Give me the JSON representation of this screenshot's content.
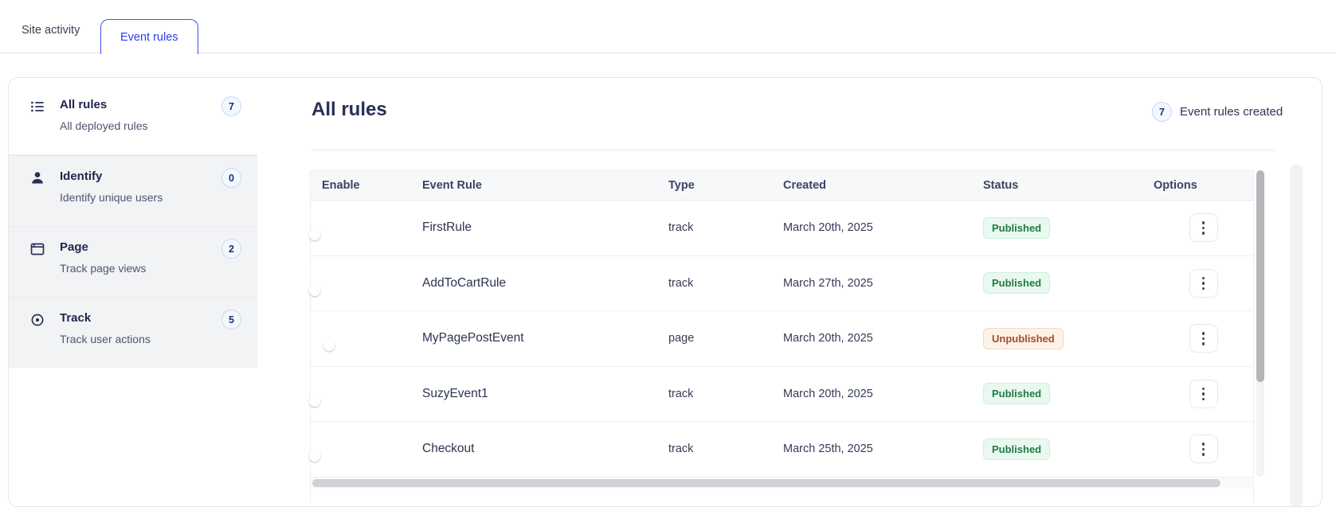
{
  "tabs": [
    {
      "label": "Site activity",
      "active": false
    },
    {
      "label": "Event rules",
      "active": true
    }
  ],
  "sidebar": {
    "items": [
      {
        "icon": "list-icon",
        "title": "All rules",
        "subtitle": "All deployed rules",
        "count": "7",
        "selected": true
      },
      {
        "icon": "user-icon",
        "title": "Identify",
        "subtitle": "Identify unique users",
        "count": "0",
        "selected": false
      },
      {
        "icon": "browser-icon",
        "title": "Page",
        "subtitle": "Track page views",
        "count": "2",
        "selected": false
      },
      {
        "icon": "target-icon",
        "title": "Track",
        "subtitle": "Track user actions",
        "count": "5",
        "selected": false
      }
    ]
  },
  "main": {
    "title": "All rules",
    "summary": {
      "count": "7",
      "label": "Event rules created"
    },
    "table": {
      "columns": [
        "Enable",
        "Event Rule",
        "Type",
        "Created",
        "Status",
        "Options"
      ],
      "rows": [
        {
          "enabled": true,
          "name": "FirstRule",
          "type": "track",
          "created": "March 20th, 2025",
          "status": "Published"
        },
        {
          "enabled": true,
          "name": "AddToCartRule",
          "type": "track",
          "created": "March 27th, 2025",
          "status": "Published"
        },
        {
          "enabled": false,
          "name": "MyPagePostEvent",
          "type": "page",
          "created": "March 20th, 2025",
          "status": "Unpublished"
        },
        {
          "enabled": true,
          "name": "SuzyEvent1",
          "type": "track",
          "created": "March 20th, 2025",
          "status": "Published"
        },
        {
          "enabled": true,
          "name": "Checkout",
          "type": "track",
          "created": "March 25th, 2025",
          "status": "Published"
        }
      ]
    }
  },
  "colors": {
    "accent": "#3344ee",
    "active_tab_border": "#3d4ef2",
    "toggle_on": "#3344ee",
    "toggle_off": "#e3e4e8",
    "published_text": "#217a46",
    "published_bg": "#e9f9ef",
    "unpublished_text": "#a34e28",
    "unpublished_bg": "#fdf2e8",
    "badge_bg": "#f3f8ff",
    "badge_border": "#c9d8f8"
  }
}
